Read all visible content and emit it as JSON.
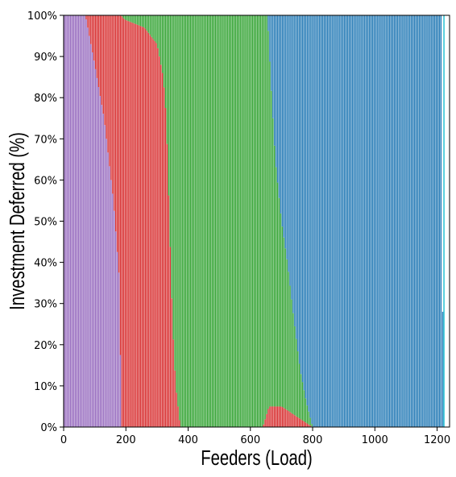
{
  "chart_data": {
    "type": "bar",
    "stacked": true,
    "xlabel": "Feeders (Load)",
    "ylabel": "Investment Deferred (%)",
    "xlim": [
      0,
      1240
    ],
    "ylim": [
      0,
      100
    ],
    "grid": false,
    "legend": "none",
    "x_ticks": [
      0,
      200,
      400,
      600,
      800,
      1000,
      1200
    ],
    "x_tick_labels": [
      "0",
      "200",
      "400",
      "600",
      "800",
      "1000",
      "1200"
    ],
    "y_ticks": [
      0,
      10,
      20,
      30,
      40,
      50,
      60,
      70,
      80,
      90,
      100
    ],
    "y_tick_labels": [
      "0%",
      "10%",
      "20%",
      "30%",
      "40%",
      "50%",
      "60%",
      "70%",
      "80%",
      "90%",
      "100%"
    ],
    "feeder_count": 1222,
    "bar_spacing": 5,
    "series": [
      {
        "color": "#9467bd",
        "profile": [
          [
            0,
            100
          ],
          [
            70,
            100
          ],
          [
            100,
            88
          ],
          [
            130,
            75
          ],
          [
            160,
            55
          ],
          [
            180,
            35
          ],
          [
            185,
            0
          ],
          [
            1222,
            0
          ]
        ]
      },
      {
        "color": "#d62728",
        "profile": [
          [
            0,
            0
          ],
          [
            70,
            0
          ],
          [
            100,
            12
          ],
          [
            130,
            25
          ],
          [
            160,
            45
          ],
          [
            180,
            65
          ],
          [
            185,
            100
          ],
          [
            195,
            99
          ],
          [
            260,
            97
          ],
          [
            300,
            93
          ],
          [
            320,
            85
          ],
          [
            330,
            75
          ],
          [
            340,
            50
          ],
          [
            350,
            25
          ],
          [
            360,
            10
          ],
          [
            375,
            0
          ],
          [
            640,
            0
          ],
          [
            660,
            5
          ],
          [
            700,
            5
          ],
          [
            740,
            3
          ],
          [
            780,
            1
          ],
          [
            800,
            0
          ],
          [
            1222,
            0
          ]
        ]
      },
      {
        "color": "#2ca02c",
        "profile": [
          [
            0,
            0
          ],
          [
            185,
            0
          ],
          [
            195,
            1
          ],
          [
            260,
            3
          ],
          [
            300,
            7
          ],
          [
            320,
            15
          ],
          [
            330,
            25
          ],
          [
            340,
            50
          ],
          [
            350,
            75
          ],
          [
            360,
            90
          ],
          [
            375,
            100
          ],
          [
            640,
            100
          ],
          [
            655,
            95
          ],
          [
            665,
            80
          ],
          [
            680,
            60
          ],
          [
            700,
            45
          ],
          [
            720,
            35
          ],
          [
            740,
            23
          ],
          [
            760,
            12
          ],
          [
            780,
            5
          ],
          [
            800,
            0
          ],
          [
            1222,
            0
          ]
        ]
      },
      {
        "color": "#1f77b4",
        "profile": [
          [
            0,
            0
          ],
          [
            640,
            0
          ],
          [
            655,
            0
          ],
          [
            665,
            15
          ],
          [
            680,
            35
          ],
          [
            700,
            50
          ],
          [
            720,
            60
          ],
          [
            740,
            74
          ],
          [
            760,
            87
          ],
          [
            780,
            94
          ],
          [
            800,
            99
          ],
          [
            820,
            100
          ],
          [
            1222,
            100
          ]
        ]
      }
    ],
    "tail_bars": [
      {
        "x": 1218,
        "values": [
          0,
          0,
          0,
          28
        ],
        "color": "#1f77b4"
      },
      {
        "x": 1222,
        "values": [
          0,
          0,
          0,
          100
        ],
        "color": "#17becf"
      }
    ]
  }
}
